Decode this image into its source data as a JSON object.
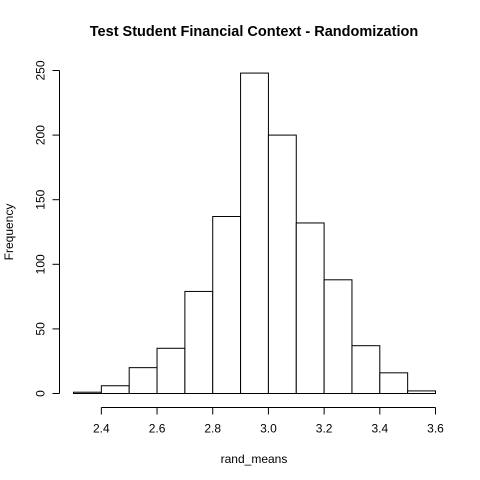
{
  "chart_data": {
    "type": "bar",
    "subtype": "histogram",
    "title": "Test Student Financial Context - Randomization",
    "xlabel": "rand_means",
    "ylabel": "Frequency",
    "bins": [
      {
        "start": 2.3,
        "end": 2.4,
        "count": 1
      },
      {
        "start": 2.4,
        "end": 2.5,
        "count": 6
      },
      {
        "start": 2.5,
        "end": 2.6,
        "count": 20
      },
      {
        "start": 2.6,
        "end": 2.7,
        "count": 35
      },
      {
        "start": 2.7,
        "end": 2.8,
        "count": 79
      },
      {
        "start": 2.8,
        "end": 2.9,
        "count": 137
      },
      {
        "start": 2.9,
        "end": 3.0,
        "count": 248
      },
      {
        "start": 3.0,
        "end": 3.1,
        "count": 200
      },
      {
        "start": 3.1,
        "end": 3.2,
        "count": 132
      },
      {
        "start": 3.2,
        "end": 3.3,
        "count": 88
      },
      {
        "start": 3.3,
        "end": 3.4,
        "count": 37
      },
      {
        "start": 3.4,
        "end": 3.5,
        "count": 16
      },
      {
        "start": 3.5,
        "end": 3.6,
        "count": 2
      }
    ],
    "xticks": [
      "2.4",
      "2.6",
      "2.8",
      "3.0",
      "3.2",
      "3.4",
      "3.6"
    ],
    "yticks": [
      "0",
      "50",
      "100",
      "150",
      "200",
      "250"
    ],
    "xlim": [
      2.3,
      3.6
    ],
    "ylim": [
      0,
      250
    ],
    "grid": false,
    "legend": "none",
    "colors": {
      "bar_fill": "#ffffff",
      "bar_stroke": "#000000",
      "axis": "#000000"
    }
  }
}
